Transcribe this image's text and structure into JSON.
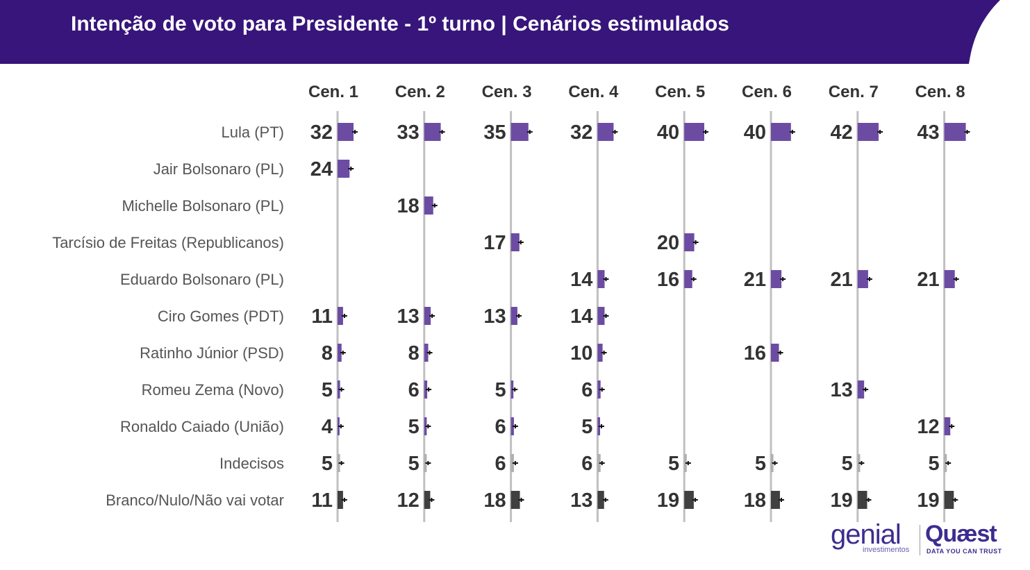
{
  "header": {
    "title": "Intenção de voto para Presidente - 1º turno | Cenários estimulados"
  },
  "colors": {
    "header_bg": "#37157a",
    "candidate_bar": "#6c4ca3",
    "undecided_bar": "#b0b0b0",
    "null_bar": "#404040",
    "value_text": "#333333",
    "label_text": "#555555",
    "gridline": "#c0c0c0"
  },
  "logos": {
    "genial": "genial",
    "genial_sub": "investimentos",
    "quaest": "Quæst",
    "quaest_sub": "DATA YOU CAN TRUST"
  },
  "chart_data": {
    "type": "bar",
    "orientation": "horizontal",
    "title": "Intenção de voto para Presidente - 1º turno | Cenários estimulados",
    "scenarios": [
      "Cen. 1",
      "Cen. 2",
      "Cen. 3",
      "Cen. 4",
      "Cen. 5",
      "Cen. 6",
      "Cen. 7",
      "Cen. 8"
    ],
    "categories": [
      "Lula (PT)",
      "Jair Bolsonaro (PL)",
      "Michelle Bolsonaro (PL)",
      "Tarcísio de Freitas (Republicanos)",
      "Eduardo Bolsonaro (PL)",
      "Ciro Gomes (PDT)",
      "Ratinho Júnior (PSD)",
      "Romeu Zema (Novo)",
      "Ronaldo Caiado (União)",
      "Indecisos",
      "Branco/Nulo/Não vai votar"
    ],
    "category_kind": [
      "candidate",
      "candidate",
      "candidate",
      "candidate",
      "candidate",
      "candidate",
      "candidate",
      "candidate",
      "candidate",
      "undecided",
      "null"
    ],
    "values": [
      [
        32,
        33,
        35,
        32,
        40,
        40,
        42,
        43
      ],
      [
        24,
        null,
        null,
        null,
        null,
        null,
        null,
        null
      ],
      [
        null,
        18,
        null,
        null,
        null,
        null,
        null,
        null
      ],
      [
        null,
        null,
        17,
        null,
        20,
        null,
        null,
        null
      ],
      [
        null,
        null,
        null,
        14,
        16,
        21,
        21,
        21
      ],
      [
        11,
        13,
        13,
        14,
        null,
        null,
        null,
        null
      ],
      [
        8,
        8,
        null,
        10,
        null,
        16,
        null,
        null
      ],
      [
        5,
        6,
        5,
        6,
        null,
        null,
        13,
        null
      ],
      [
        4,
        5,
        6,
        5,
        null,
        null,
        null,
        12
      ],
      [
        5,
        5,
        6,
        6,
        5,
        5,
        5,
        5
      ],
      [
        11,
        12,
        18,
        13,
        19,
        18,
        19,
        19
      ]
    ],
    "value_unit": "%",
    "error_bars": true,
    "grid": false,
    "legend": "none"
  }
}
